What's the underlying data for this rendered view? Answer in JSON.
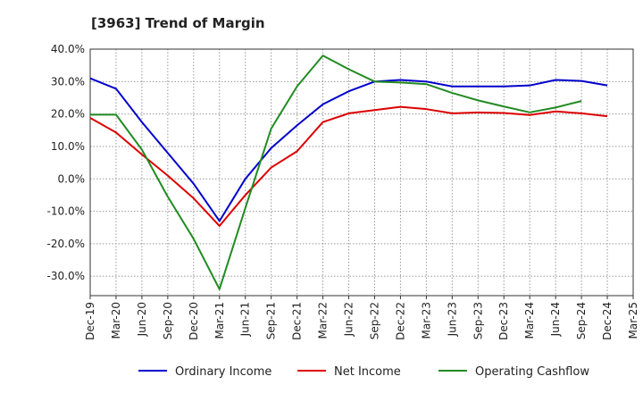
{
  "chart_data": {
    "type": "line",
    "title": "[3963]  Trend of Margin",
    "xlabel": "",
    "ylabel": "",
    "categories": [
      "Dec-19",
      "Mar-20",
      "Jun-20",
      "Sep-20",
      "Dec-20",
      "Mar-21",
      "Jun-21",
      "Sep-21",
      "Dec-21",
      "Mar-22",
      "Jun-22",
      "Sep-22",
      "Dec-22",
      "Mar-23",
      "Jun-23",
      "Sep-23",
      "Dec-23",
      "Mar-24",
      "Jun-24",
      "Sep-24",
      "Dec-24",
      "Mar-25"
    ],
    "x_tick_labels": [
      "Dec-19",
      "Mar-20",
      "Jun-20",
      "Sep-20",
      "Dec-20",
      "Mar-21",
      "Jun-21",
      "Sep-21",
      "Dec-21",
      "Mar-22",
      "Jun-22",
      "Sep-22",
      "Dec-22",
      "Mar-23",
      "Jun-23",
      "Sep-23",
      "Dec-23",
      "Mar-24",
      "Jun-24",
      "Sep-24",
      "Dec-24",
      "Mar-25"
    ],
    "y_tick_values": [
      40,
      30,
      20,
      10,
      0,
      -10,
      -20,
      -30
    ],
    "y_tick_labels": [
      "40.0%",
      "30.0%",
      "20.0%",
      "10.0%",
      "0.0%",
      "-10.0%",
      "-20.0%",
      "-30.0%"
    ],
    "ylim": [
      -36,
      40
    ],
    "grid": true,
    "legend_position": "bottom",
    "series": [
      {
        "name": "Ordinary Income",
        "color": "#0000cc",
        "values": [
          31.0,
          27.8,
          17.5,
          8.0,
          -1.5,
          -13.0,
          0.0,
          9.5,
          16.5,
          23.0,
          27.0,
          30.0,
          30.5,
          30.0,
          28.5,
          28.5,
          28.5,
          28.8,
          30.5,
          30.2,
          28.8,
          null
        ]
      },
      {
        "name": "Net Income",
        "color": "#dd0000",
        "values": [
          18.8,
          14.3,
          7.5,
          1.0,
          -6.0,
          -14.5,
          -5.0,
          3.5,
          8.5,
          17.5,
          20.2,
          21.2,
          22.2,
          21.5,
          20.2,
          20.5,
          20.3,
          19.7,
          20.8,
          20.2,
          19.3,
          null
        ]
      },
      {
        "name": "Operating Cashflow",
        "color": "#228b22",
        "values": [
          19.8,
          19.8,
          9.0,
          -5.5,
          -18.5,
          -34.0,
          -9.0,
          15.5,
          28.5,
          38.0,
          33.8,
          30.0,
          29.7,
          29.2,
          26.5,
          24.2,
          22.3,
          20.5,
          22.0,
          24.0,
          null,
          null
        ]
      }
    ]
  }
}
